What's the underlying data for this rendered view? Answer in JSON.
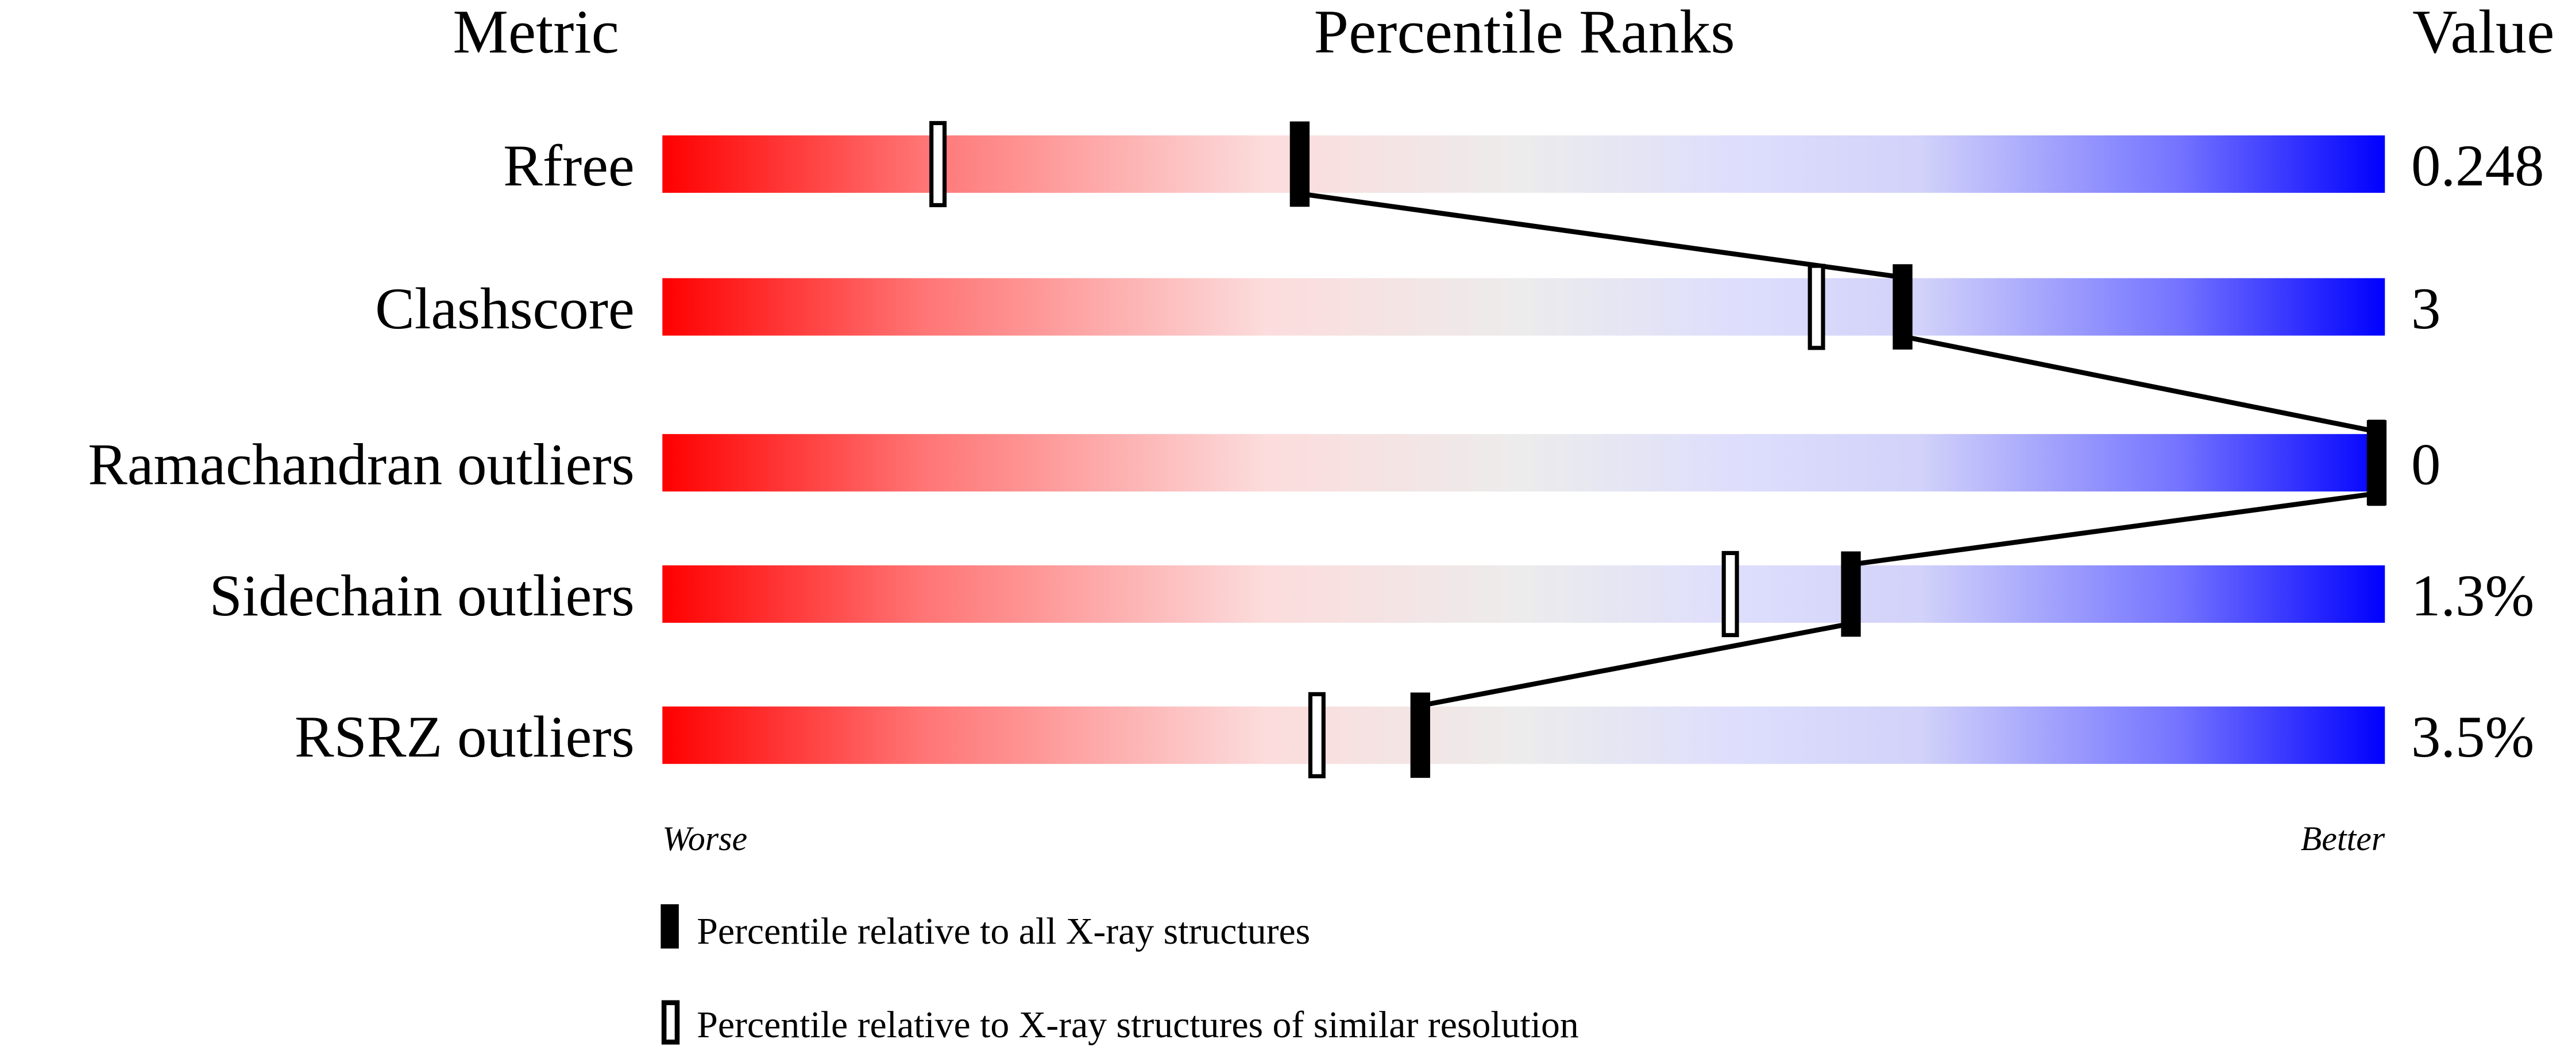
{
  "chart_data": {
    "type": "bar",
    "subtype": "percentile-slider",
    "headers": {
      "metric": "Metric",
      "ranks": "Percentile Ranks",
      "value": "Value"
    },
    "xlim": [
      0,
      100
    ],
    "axis_labels": {
      "left": "Worse",
      "right": "Better"
    },
    "categories": [
      "Rfree",
      "Clashscore",
      "Ramachandran outliers",
      "Sidechain outliers",
      "RSRZ outliers"
    ],
    "values_text": [
      "0.248",
      "3",
      "0",
      "1.3%",
      "3.5%"
    ],
    "series": [
      {
        "name": "Percentile relative to all X-ray structures",
        "style": "filled",
        "values": [
          37,
          72,
          100,
          69,
          44
        ]
      },
      {
        "name": "Percentile relative to X-ray structures of similar resolution",
        "style": "open",
        "values": [
          16,
          67,
          100,
          62,
          38
        ]
      }
    ],
    "colors": {
      "worse": "#ff0000",
      "middle": "#eeeeee",
      "better": "#0000ff",
      "marker": "#000000"
    }
  }
}
